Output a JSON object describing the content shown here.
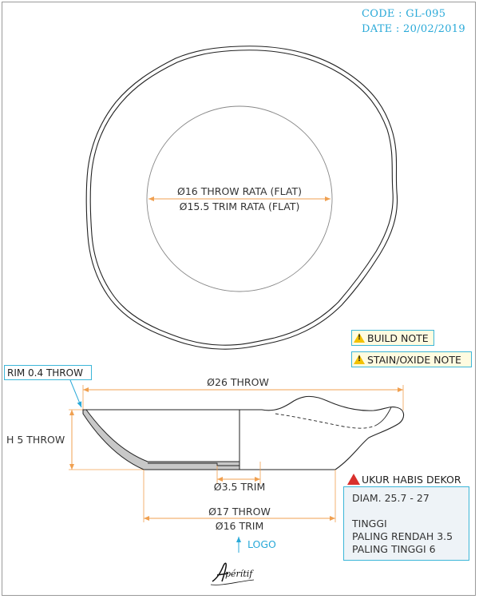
{
  "header": {
    "code": "CODE : GL-095",
    "date": "DATE : 20/02/2019"
  },
  "top_view": {
    "dim_inner_1": "Ø16 THROW RATA (FLAT)",
    "dim_inner_2": "Ø15.5 TRIM RATA (FLAT)"
  },
  "notes": {
    "build": "BUILD NOTE",
    "stain": "STAIN/OXIDE NOTE"
  },
  "section_view": {
    "rim": "RIM 0.4 THROW",
    "diameter": "Ø26 THROW",
    "height": "H 5 THROW",
    "foot_trim": "Ø3.5 TRIM",
    "base_throw": "Ø17 THROW",
    "base_trim": "Ø16 TRIM"
  },
  "spec": {
    "title": "UKUR HABIS DEKOR",
    "diam": "DIAM. 25.7 - 27",
    "tinggi": "TINGGI",
    "low": "PALING RENDAH 3.5",
    "high": "PALING TINGGI 6"
  },
  "logo": {
    "label": "LOGO",
    "brand": "Apéritif"
  },
  "colors": {
    "accent": "#29a9d8",
    "dimension": "#f0a050",
    "warning": "#f2c200",
    "alert": "#d9302c"
  }
}
